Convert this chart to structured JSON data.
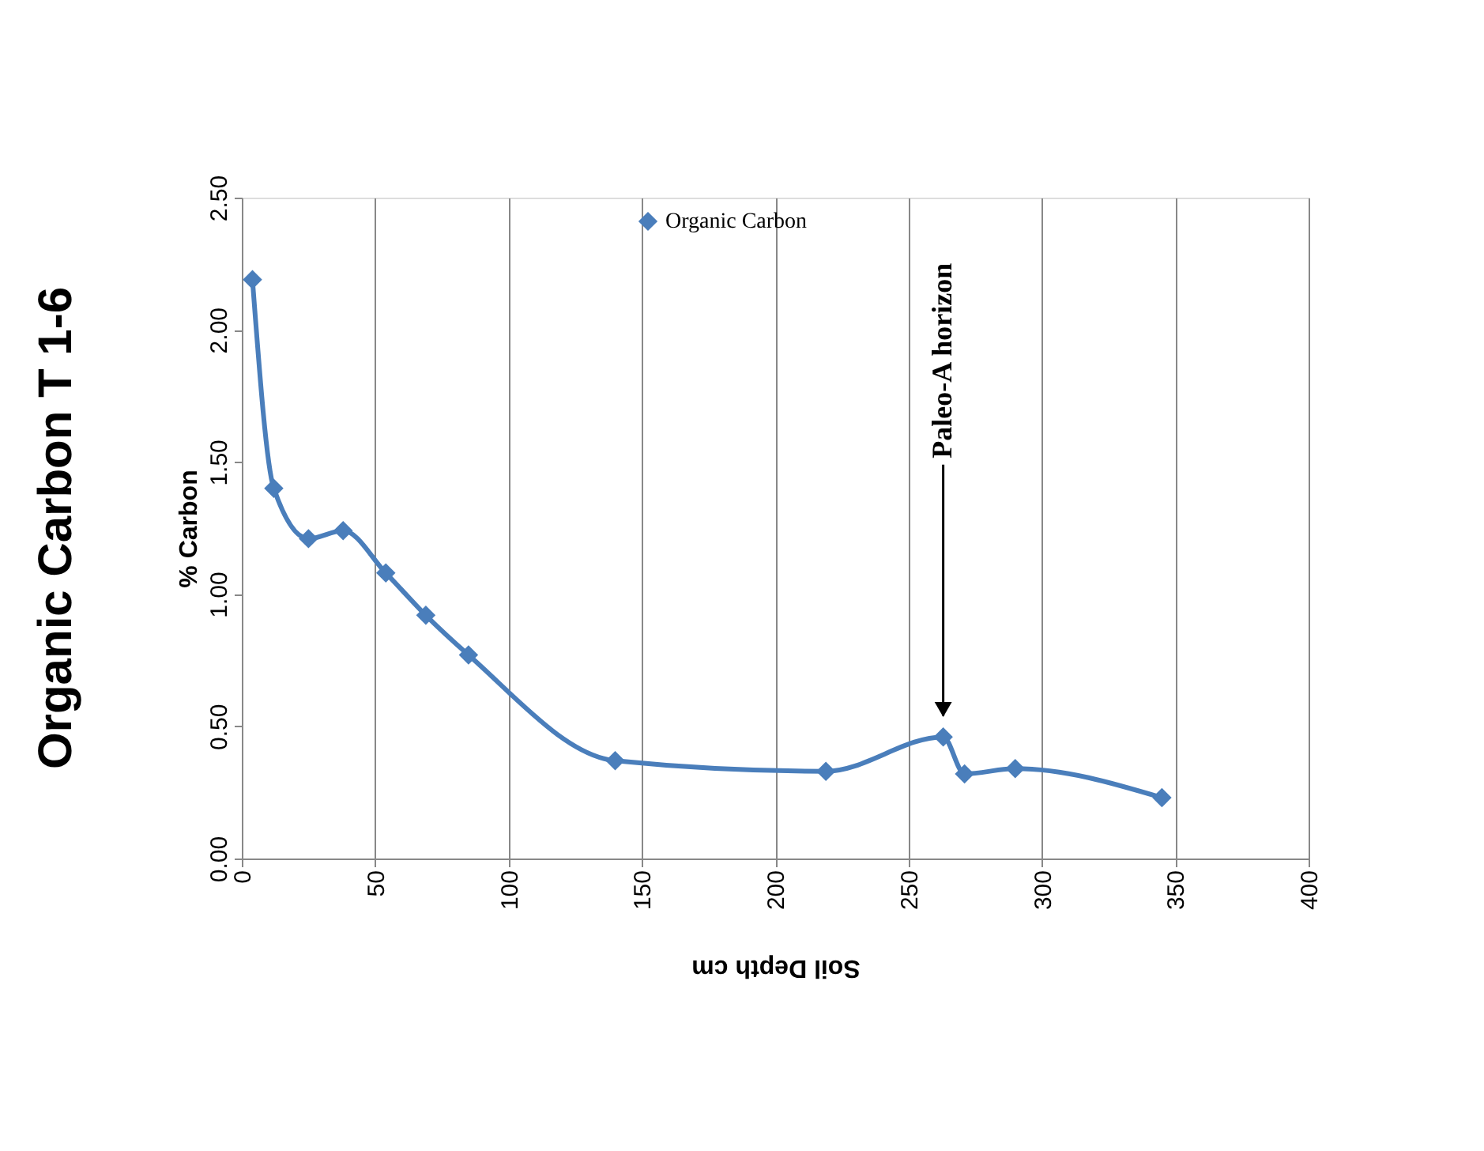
{
  "chart_data": {
    "type": "line",
    "title": "Organic Carbon T 1-6",
    "xlabel": "Soil Depth cm",
    "ylabel": "% Carbon",
    "x": [
      4,
      12,
      25,
      38,
      54,
      69,
      85,
      140,
      219,
      263,
      271,
      290,
      345
    ],
    "series": [
      {
        "name": "Organic Carbon",
        "color": "#4a7ebb",
        "values": [
          2.19,
          1.4,
          1.21,
          1.24,
          1.08,
          0.92,
          0.77,
          0.37,
          0.33,
          0.46,
          0.32,
          0.34,
          0.23
        ]
      }
    ],
    "xlim": [
      0,
      400
    ],
    "xticks": [
      0,
      50,
      100,
      150,
      200,
      250,
      300,
      350,
      400
    ],
    "ylim": [
      0,
      2.5
    ],
    "yticks": [
      {
        "value": 0,
        "label": "0.00"
      },
      {
        "value": 0.5,
        "label": "0.50"
      },
      {
        "value": 1,
        "label": "1.00"
      },
      {
        "value": 1.5,
        "label": "1.50"
      },
      {
        "value": 2,
        "label": "2.00"
      },
      {
        "value": 2.5,
        "label": "2.50"
      }
    ],
    "annotations": [
      "Paleo-A horizon"
    ],
    "grid": "x",
    "legend": "top",
    "marker": "diamond",
    "line_style": "solid"
  }
}
